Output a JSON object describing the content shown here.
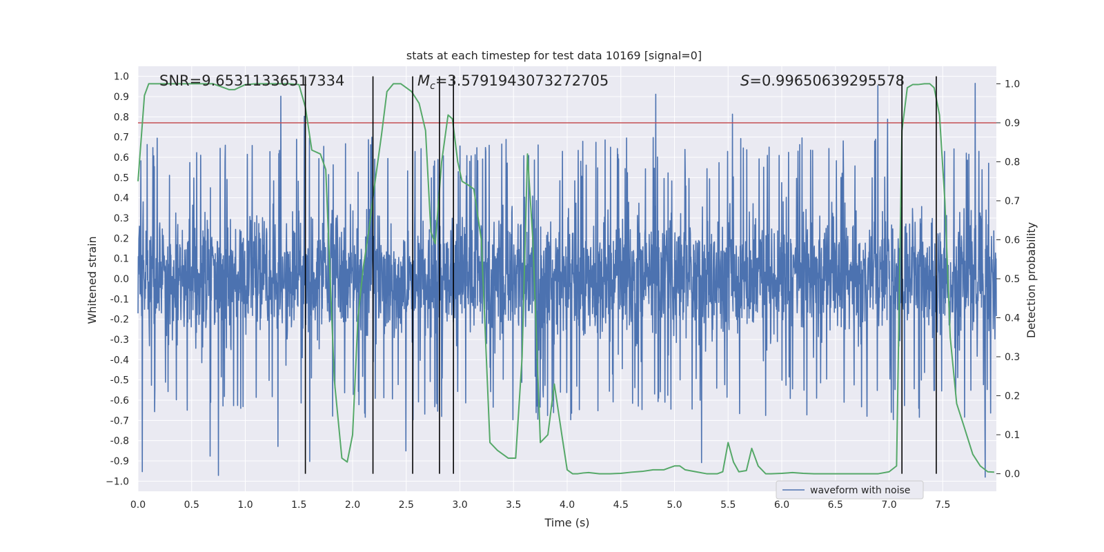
{
  "chart_data": {
    "type": "line",
    "title": "stats at each timestep for test data 10169 [signal=0]",
    "xlabel": "Time (s)",
    "ylabel": "Whitened strain",
    "ylabel_right": "Detection probability",
    "xlim": [
      0.0,
      8.0
    ],
    "ylim": [
      -1.05,
      1.05
    ],
    "ylim_right": [
      -0.045,
      1.045
    ],
    "x_ticks": [
      "0.0",
      "0.5",
      "1.0",
      "1.5",
      "2.0",
      "2.5",
      "3.0",
      "3.5",
      "4.0",
      "4.5",
      "5.0",
      "5.5",
      "6.0",
      "6.5",
      "7.0",
      "7.5"
    ],
    "y_ticks": [
      "1.0",
      "0.9",
      "0.8",
      "0.7",
      "0.6",
      "0.5",
      "0.4",
      "0.3",
      "0.2",
      "0.1",
      "0.0",
      "-0.1",
      "-0.2",
      "-0.3",
      "-0.4",
      "-0.5",
      "-0.6",
      "-0.7",
      "-0.8",
      "-0.9",
      "−1.0"
    ],
    "y_ticks_right": [
      "1.0",
      "0.9",
      "0.8",
      "0.7",
      "0.6",
      "0.5",
      "0.4",
      "0.3",
      "0.2",
      "0.1",
      "0.0"
    ],
    "annotations": {
      "snr": "SNR=9.65311336517334",
      "mc_symbol": "M",
      "mc_sub": "c",
      "mc_value": "=3.5791943073272705",
      "s_symbol": "S",
      "s_value": "=0.99650639295578"
    },
    "grid": true,
    "legend": {
      "placement": "lower-right",
      "entries": [
        "waveform with noise"
      ]
    },
    "colors": {
      "strain": "#4c72b0",
      "probability": "#55a868",
      "threshold": "#c44e52",
      "event_lines": "#000000",
      "plot_background": "#eaeaf2",
      "grid": "#ffffff"
    },
    "threshold_probability": 0.9,
    "event_lines_x": [
      1.56,
      2.19,
      2.56,
      2.81,
      2.94,
      7.12,
      7.44
    ],
    "series": [
      {
        "name": "waveform with noise",
        "kind": "noise",
        "base_amplitude": 0.48,
        "peak_amplitude": 1.0
      },
      {
        "kind": "probability",
        "x": [
          0.0,
          0.06,
          0.1,
          0.12,
          0.2,
          0.3,
          0.5,
          0.6,
          0.7,
          0.8,
          0.85,
          0.9,
          1.0,
          1.1,
          1.2,
          1.3,
          1.4,
          1.5,
          1.56,
          1.62,
          1.7,
          1.75,
          1.83,
          1.9,
          1.95,
          2.0,
          2.05,
          2.1,
          2.15,
          2.2,
          2.27,
          2.32,
          2.38,
          2.45,
          2.55,
          2.62,
          2.68,
          2.73,
          2.77,
          2.83,
          2.89,
          2.93,
          2.98,
          3.02,
          3.08,
          3.13,
          3.2,
          3.28,
          3.35,
          3.45,
          3.52,
          3.58,
          3.63,
          3.68,
          3.75,
          3.82,
          3.88,
          3.95,
          4.0,
          4.05,
          4.1,
          4.15,
          4.2,
          4.3,
          4.4,
          4.5,
          4.6,
          4.7,
          4.8,
          4.9,
          4.95,
          5.0,
          5.05,
          5.1,
          5.2,
          5.3,
          5.4,
          5.45,
          5.5,
          5.55,
          5.6,
          5.67,
          5.72,
          5.78,
          5.85,
          5.9,
          6.0,
          6.1,
          6.2,
          6.3,
          6.4,
          6.5,
          6.6,
          6.7,
          6.8,
          6.9,
          7.0,
          7.07,
          7.12,
          7.17,
          7.22,
          7.27,
          7.33,
          7.38,
          7.42,
          7.47,
          7.52,
          7.57,
          7.63,
          7.7,
          7.78,
          7.85,
          7.92,
          7.98
        ],
        "y": [
          0.75,
          0.97,
          1.0,
          1.0,
          1.0,
          1.0,
          1.0,
          1.0,
          1.0,
          0.99,
          0.985,
          0.985,
          0.998,
          1.0,
          1.0,
          1.0,
          1.0,
          0.998,
          0.94,
          0.83,
          0.82,
          0.78,
          0.24,
          0.04,
          0.03,
          0.1,
          0.4,
          0.53,
          0.62,
          0.73,
          0.87,
          0.98,
          1.0,
          1.0,
          0.98,
          0.95,
          0.88,
          0.62,
          0.59,
          0.8,
          0.92,
          0.91,
          0.8,
          0.75,
          0.74,
          0.73,
          0.6,
          0.08,
          0.06,
          0.04,
          0.04,
          0.3,
          0.82,
          0.6,
          0.08,
          0.1,
          0.23,
          0.1,
          0.01,
          0.0,
          0.0,
          0.002,
          0.003,
          0.0,
          0.0,
          0.001,
          0.004,
          0.006,
          0.01,
          0.01,
          0.015,
          0.02,
          0.02,
          0.01,
          0.005,
          0.0,
          0.0,
          0.005,
          0.08,
          0.03,
          0.005,
          0.008,
          0.065,
          0.02,
          0.0,
          0.0,
          0.001,
          0.003,
          0.001,
          0.0,
          0.0,
          0.0,
          0.0,
          0.0,
          0.0,
          0.0,
          0.005,
          0.02,
          0.88,
          0.99,
          0.998,
          0.998,
          1.0,
          1.0,
          0.99,
          0.92,
          0.7,
          0.35,
          0.18,
          0.12,
          0.05,
          0.02,
          0.005,
          0.004
        ]
      }
    ]
  }
}
